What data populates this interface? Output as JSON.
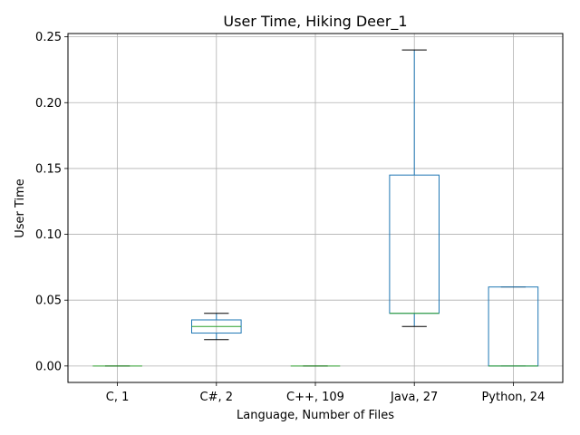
{
  "chart_data": {
    "type": "box",
    "title": "User Time, Hiking Deer_1",
    "xlabel": "Language, Number of Files",
    "ylabel": "User Time",
    "ylim": [
      -0.0125,
      0.2525
    ],
    "yticks": [
      0.0,
      0.05,
      0.1,
      0.15,
      0.2,
      0.25
    ],
    "ytick_labels": [
      "0.00",
      "0.05",
      "0.10",
      "0.15",
      "0.20",
      "0.25"
    ],
    "grid": true,
    "categories": [
      "C, 1",
      "C#, 2",
      "C++, 109",
      "Java, 27",
      "Python, 24"
    ],
    "boxes": [
      {
        "whisker_low": 0.0,
        "q1": 0.0,
        "median": 0.0,
        "q3": 0.0,
        "whisker_high": 0.0
      },
      {
        "whisker_low": 0.02,
        "q1": 0.025,
        "median": 0.03,
        "q3": 0.035,
        "whisker_high": 0.04
      },
      {
        "whisker_low": 0.0,
        "q1": 0.0,
        "median": 0.0,
        "q3": 0.0,
        "whisker_high": 0.0
      },
      {
        "whisker_low": 0.03,
        "q1": 0.04,
        "median": 0.04,
        "q3": 0.145,
        "whisker_high": 0.24
      },
      {
        "whisker_low": 0.0,
        "q1": 0.0,
        "median": 0.0,
        "q3": 0.06,
        "whisker_high": 0.06
      }
    ],
    "colors": {
      "box": "#1f77b4",
      "median": "#2ca02c",
      "whisker_cap": "#000000",
      "grid": "#b0b0b0"
    }
  }
}
